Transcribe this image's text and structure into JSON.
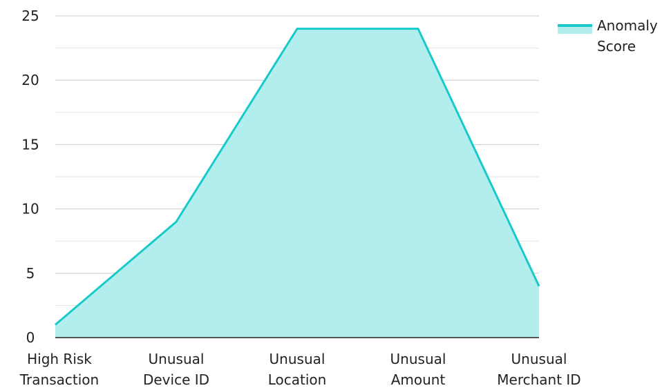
{
  "chart_data": {
    "type": "area",
    "categories": [
      [
        "High Risk",
        "Transaction"
      ],
      [
        "Unusual",
        "Device ID"
      ],
      [
        "Unusual",
        "Location"
      ],
      [
        "Unusual",
        "Amount"
      ],
      [
        "Unusual",
        "Merchant ID"
      ]
    ],
    "series": [
      {
        "name": "Anomaly Score",
        "values": [
          1,
          9,
          24,
          24,
          4
        ]
      }
    ],
    "ylim": [
      0,
      25
    ],
    "yticks": [
      0,
      5,
      10,
      15,
      20,
      25
    ],
    "grid": true,
    "legend_position": "top-right",
    "legend_lines": [
      "Anomaly",
      "Score"
    ],
    "colors": {
      "line": "#17c9c9",
      "fill": "#b2eeee",
      "grid": "#cccccc",
      "axis": "#222222"
    }
  }
}
